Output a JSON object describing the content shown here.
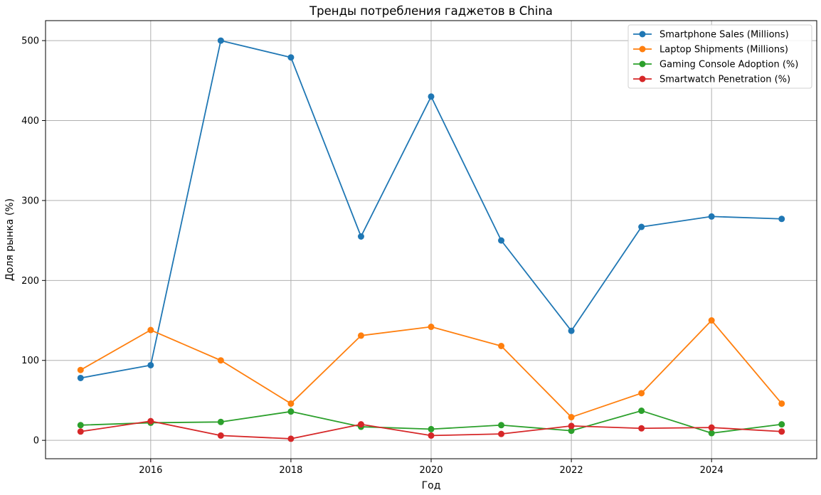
{
  "chart_data": {
    "type": "line",
    "title": "Тренды потребления гаджетов в China",
    "xlabel": "Год",
    "ylabel": "Доля рынка (%)",
    "x": [
      2015,
      2016,
      2017,
      2018,
      2019,
      2020,
      2021,
      2022,
      2023,
      2024,
      2025
    ],
    "xlim": [
      2014.5,
      2025.5
    ],
    "ylim": [
      -23,
      525
    ],
    "x_ticks": [
      2016,
      2018,
      2020,
      2022,
      2024
    ],
    "y_ticks": [
      0,
      100,
      200,
      300,
      400,
      500
    ],
    "grid": true,
    "legend_position": "top-right",
    "series": [
      {
        "name": "Smartphone Sales (Millions)",
        "color": "#1f77b4",
        "values": [
          78,
          94,
          500,
          479,
          255,
          430,
          250,
          137,
          267,
          280,
          277
        ]
      },
      {
        "name": "Laptop Shipments (Millions)",
        "color": "#ff7f0e",
        "values": [
          88,
          138,
          100,
          46,
          131,
          142,
          118,
          29,
          59,
          150,
          46
        ]
      },
      {
        "name": "Gaming Console Adoption (%)",
        "color": "#2ca02c",
        "values": [
          19,
          22,
          23,
          36,
          17,
          14,
          19,
          12,
          37,
          9,
          20
        ]
      },
      {
        "name": "Smartwatch Penetration (%)",
        "color": "#d62728",
        "values": [
          11,
          24,
          6,
          2,
          20,
          6,
          8,
          18,
          15,
          16,
          11
        ]
      }
    ]
  }
}
